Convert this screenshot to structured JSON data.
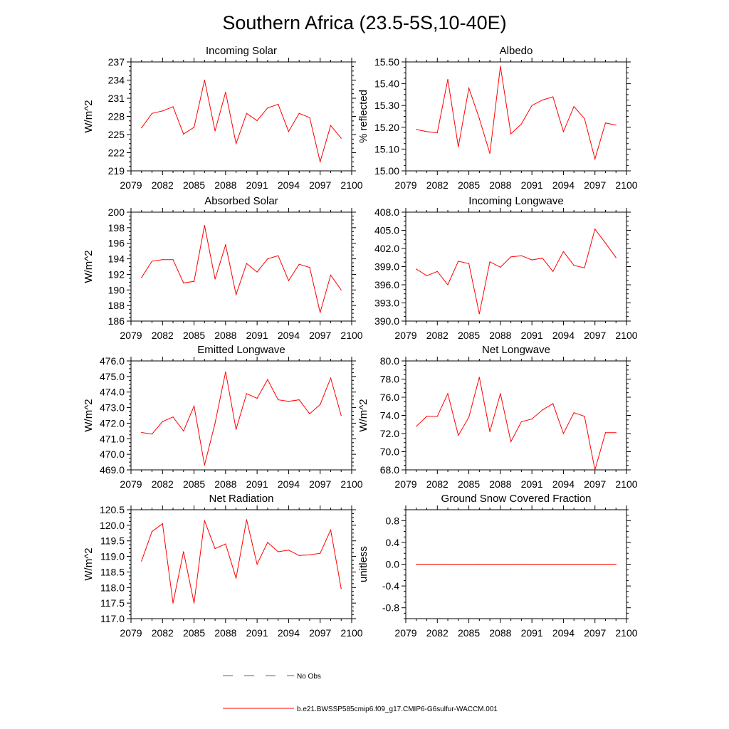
{
  "figure": {
    "title": "Southern Africa (23.5-5S,10-40E)",
    "line_color": "#ff0000",
    "obs_color": "#4a5fb0"
  },
  "legend": {
    "obs_label": "No Obs",
    "model_label": "b.e21.BWSSP585cmip6.f09_g17.CMIP6-G6sulfur-WACCM.001",
    "placement": "bottom-center"
  },
  "chart_data": [
    {
      "type": "line",
      "title": "Incoming Solar",
      "xlabel": "",
      "ylabel": "W/m^2",
      "xlim": [
        2079,
        2100
      ],
      "ylim": [
        219,
        237
      ],
      "x_ticks": [
        "2079",
        "2082",
        "2085",
        "2088",
        "2091",
        "2094",
        "2097",
        "2100"
      ],
      "y_ticks": [
        "219",
        "222",
        "225",
        "228",
        "231",
        "234",
        "237"
      ],
      "grid": false,
      "series": [
        {
          "x": [
            2080,
            2081,
            2082,
            2083,
            2084,
            2085,
            2086,
            2087,
            2088,
            2089,
            2090,
            2091,
            2092,
            2093,
            2094,
            2095,
            2096,
            2097,
            2098,
            2099
          ],
          "values": [
            226.1,
            228.5,
            228.9,
            229.6,
            225.1,
            226.2,
            234.0,
            225.6,
            232.0,
            223.5,
            228.5,
            227.3,
            229.4,
            230.0,
            225.5,
            228.5,
            227.8,
            220.5,
            226.5,
            224.4
          ]
        }
      ]
    },
    {
      "type": "line",
      "title": "Albedo",
      "xlabel": "",
      "ylabel": "% reflected",
      "xlim": [
        2079,
        2100
      ],
      "ylim": [
        15.0,
        15.5
      ],
      "x_ticks": [
        "2079",
        "2082",
        "2085",
        "2088",
        "2091",
        "2094",
        "2097",
        "2100"
      ],
      "y_ticks": [
        "15.00",
        "15.10",
        "15.20",
        "15.30",
        "15.40",
        "15.50"
      ],
      "grid": false,
      "series": [
        {
          "x": [
            2080,
            2081,
            2082,
            2083,
            2084,
            2085,
            2086,
            2087,
            2088,
            2089,
            2090,
            2091,
            2092,
            2093,
            2094,
            2095,
            2096,
            2097,
            2098,
            2099
          ],
          "values": [
            15.19,
            15.18,
            15.175,
            15.42,
            15.11,
            15.38,
            15.24,
            15.08,
            15.48,
            15.17,
            15.215,
            15.3,
            15.325,
            15.34,
            15.18,
            15.295,
            15.24,
            15.055,
            15.22,
            15.21
          ]
        }
      ]
    },
    {
      "type": "line",
      "title": "Absorbed Solar",
      "xlabel": "",
      "ylabel": "W/m^2",
      "xlim": [
        2079,
        2100
      ],
      "ylim": [
        186,
        200
      ],
      "x_ticks": [
        "2079",
        "2082",
        "2085",
        "2088",
        "2091",
        "2094",
        "2097",
        "2100"
      ],
      "y_ticks": [
        "186",
        "188",
        "190",
        "192",
        "194",
        "196",
        "198",
        "200"
      ],
      "grid": false,
      "series": [
        {
          "x": [
            2080,
            2081,
            2082,
            2083,
            2084,
            2085,
            2086,
            2087,
            2088,
            2089,
            2090,
            2091,
            2092,
            2093,
            2094,
            2095,
            2096,
            2097,
            2098,
            2099
          ],
          "values": [
            191.6,
            193.7,
            193.9,
            193.9,
            190.9,
            191.1,
            198.3,
            191.4,
            195.8,
            189.4,
            193.4,
            192.3,
            194.0,
            194.4,
            191.2,
            193.3,
            192.9,
            187.1,
            191.9,
            190.0
          ]
        }
      ]
    },
    {
      "type": "line",
      "title": "Incoming Longwave",
      "xlabel": "",
      "ylabel": "",
      "xlim": [
        2079,
        2100
      ],
      "ylim": [
        390.0,
        408.0
      ],
      "x_ticks": [
        "2079",
        "2082",
        "2085",
        "2088",
        "2091",
        "2094",
        "2097",
        "2100"
      ],
      "y_ticks": [
        "390.0",
        "393.0",
        "396.0",
        "399.0",
        "402.0",
        "405.0",
        "408.0"
      ],
      "grid": false,
      "series": [
        {
          "x": [
            2080,
            2081,
            2082,
            2083,
            2084,
            2085,
            2086,
            2087,
            2088,
            2089,
            2090,
            2091,
            2092,
            2093,
            2094,
            2095,
            2096,
            2097,
            2098,
            2099
          ],
          "values": [
            398.6,
            397.5,
            398.2,
            396.0,
            399.9,
            399.5,
            391.2,
            399.8,
            398.9,
            400.6,
            400.8,
            400.1,
            400.4,
            398.2,
            401.5,
            399.2,
            398.8,
            405.2,
            402.9,
            400.5
          ]
        }
      ]
    },
    {
      "type": "line",
      "title": "Emitted Longwave",
      "xlabel": "",
      "ylabel": "W/m^2",
      "xlim": [
        2079,
        2100
      ],
      "ylim": [
        469.0,
        476.0
      ],
      "x_ticks": [
        "2079",
        "2082",
        "2085",
        "2088",
        "2091",
        "2094",
        "2097",
        "2100"
      ],
      "y_ticks": [
        "469.0",
        "470.0",
        "471.0",
        "472.0",
        "473.0",
        "474.0",
        "475.0",
        "476.0"
      ],
      "grid": false,
      "series": [
        {
          "x": [
            2080,
            2081,
            2082,
            2083,
            2084,
            2085,
            2086,
            2087,
            2088,
            2089,
            2090,
            2091,
            2092,
            2093,
            2094,
            2095,
            2096,
            2097,
            2098,
            2099
          ],
          "values": [
            471.4,
            471.3,
            472.1,
            472.4,
            471.5,
            473.1,
            469.3,
            472.0,
            475.3,
            471.6,
            473.9,
            473.6,
            474.8,
            473.5,
            473.4,
            473.5,
            472.6,
            473.2,
            474.9,
            472.5
          ]
        }
      ]
    },
    {
      "type": "line",
      "title": "Net Longwave",
      "xlabel": "",
      "ylabel": "W/m^2",
      "xlim": [
        2079,
        2100
      ],
      "ylim": [
        68.0,
        80.0
      ],
      "x_ticks": [
        "2079",
        "2082",
        "2085",
        "2088",
        "2091",
        "2094",
        "2097",
        "2100"
      ],
      "y_ticks": [
        "68.0",
        "70.0",
        "72.0",
        "74.0",
        "76.0",
        "78.0",
        "80.0"
      ],
      "grid": false,
      "series": [
        {
          "x": [
            2080,
            2081,
            2082,
            2083,
            2084,
            2085,
            2086,
            2087,
            2088,
            2089,
            2090,
            2091,
            2092,
            2093,
            2094,
            2095,
            2096,
            2097,
            2098,
            2099
          ],
          "values": [
            72.8,
            73.9,
            73.9,
            76.4,
            71.8,
            73.8,
            78.2,
            72.2,
            76.4,
            71.1,
            73.3,
            73.6,
            74.6,
            75.3,
            72.0,
            74.3,
            73.9,
            68.0,
            72.1,
            72.1
          ]
        }
      ]
    },
    {
      "type": "line",
      "title": "Net Radiation",
      "xlabel": "",
      "ylabel": "W/m^2",
      "xlim": [
        2079,
        2100
      ],
      "ylim": [
        117.0,
        120.5
      ],
      "x_ticks": [
        "2079",
        "2082",
        "2085",
        "2088",
        "2091",
        "2094",
        "2097",
        "2100"
      ],
      "y_ticks": [
        "117.0",
        "117.5",
        "118.0",
        "118.5",
        "119.0",
        "119.5",
        "120.0",
        "120.5"
      ],
      "grid": false,
      "series": [
        {
          "x": [
            2080,
            2081,
            2082,
            2083,
            2084,
            2085,
            2086,
            2087,
            2088,
            2089,
            2090,
            2091,
            2092,
            2093,
            2094,
            2095,
            2096,
            2097,
            2098,
            2099
          ],
          "values": [
            118.85,
            119.8,
            120.05,
            117.5,
            119.15,
            117.5,
            120.15,
            119.25,
            119.4,
            118.3,
            120.18,
            118.75,
            119.45,
            119.15,
            119.2,
            119.03,
            119.05,
            119.1,
            119.85,
            117.97
          ]
        }
      ]
    },
    {
      "type": "line",
      "title": "Ground Snow Covered Fraction",
      "xlabel": "",
      "ylabel": "unitless",
      "xlim": [
        2079,
        2100
      ],
      "ylim": [
        -1.0,
        1.0
      ],
      "x_ticks": [
        "2079",
        "2082",
        "2085",
        "2088",
        "2091",
        "2094",
        "2097",
        "2100"
      ],
      "y_ticks": [
        "-0.8",
        "-0.4",
        "0.0",
        "0.4",
        "0.8"
      ],
      "y_tick_values": [
        -0.8,
        -0.4,
        0.0,
        0.4,
        0.8
      ],
      "grid": false,
      "series": [
        {
          "x": [
            2080,
            2081,
            2082,
            2083,
            2084,
            2085,
            2086,
            2087,
            2088,
            2089,
            2090,
            2091,
            2092,
            2093,
            2094,
            2095,
            2096,
            2097,
            2098,
            2099
          ],
          "values": [
            0,
            0,
            0,
            0,
            0,
            0,
            0,
            0,
            0,
            0,
            0,
            0,
            0,
            0,
            0,
            0,
            0,
            0,
            0,
            0
          ]
        }
      ]
    }
  ]
}
